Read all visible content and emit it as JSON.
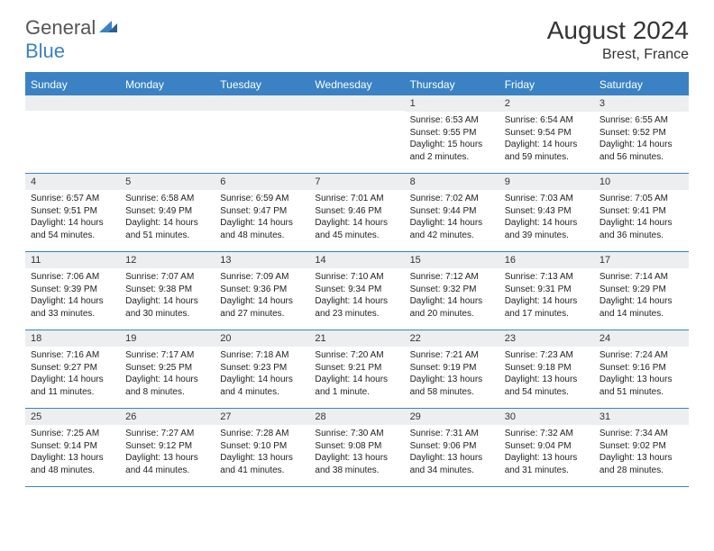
{
  "logo": {
    "part1": "General",
    "part2": "Blue"
  },
  "title": "August 2024",
  "location": "Brest, France",
  "accent_color": "#3b82c4",
  "header_bg": "#eceef0",
  "day_names": [
    "Sunday",
    "Monday",
    "Tuesday",
    "Wednesday",
    "Thursday",
    "Friday",
    "Saturday"
  ],
  "weeks": [
    [
      {
        "n": "",
        "sr": "",
        "ss": "",
        "dl": ""
      },
      {
        "n": "",
        "sr": "",
        "ss": "",
        "dl": ""
      },
      {
        "n": "",
        "sr": "",
        "ss": "",
        "dl": ""
      },
      {
        "n": "",
        "sr": "",
        "ss": "",
        "dl": ""
      },
      {
        "n": "1",
        "sr": "Sunrise: 6:53 AM",
        "ss": "Sunset: 9:55 PM",
        "dl": "Daylight: 15 hours and 2 minutes."
      },
      {
        "n": "2",
        "sr": "Sunrise: 6:54 AM",
        "ss": "Sunset: 9:54 PM",
        "dl": "Daylight: 14 hours and 59 minutes."
      },
      {
        "n": "3",
        "sr": "Sunrise: 6:55 AM",
        "ss": "Sunset: 9:52 PM",
        "dl": "Daylight: 14 hours and 56 minutes."
      }
    ],
    [
      {
        "n": "4",
        "sr": "Sunrise: 6:57 AM",
        "ss": "Sunset: 9:51 PM",
        "dl": "Daylight: 14 hours and 54 minutes."
      },
      {
        "n": "5",
        "sr": "Sunrise: 6:58 AM",
        "ss": "Sunset: 9:49 PM",
        "dl": "Daylight: 14 hours and 51 minutes."
      },
      {
        "n": "6",
        "sr": "Sunrise: 6:59 AM",
        "ss": "Sunset: 9:47 PM",
        "dl": "Daylight: 14 hours and 48 minutes."
      },
      {
        "n": "7",
        "sr": "Sunrise: 7:01 AM",
        "ss": "Sunset: 9:46 PM",
        "dl": "Daylight: 14 hours and 45 minutes."
      },
      {
        "n": "8",
        "sr": "Sunrise: 7:02 AM",
        "ss": "Sunset: 9:44 PM",
        "dl": "Daylight: 14 hours and 42 minutes."
      },
      {
        "n": "9",
        "sr": "Sunrise: 7:03 AM",
        "ss": "Sunset: 9:43 PM",
        "dl": "Daylight: 14 hours and 39 minutes."
      },
      {
        "n": "10",
        "sr": "Sunrise: 7:05 AM",
        "ss": "Sunset: 9:41 PM",
        "dl": "Daylight: 14 hours and 36 minutes."
      }
    ],
    [
      {
        "n": "11",
        "sr": "Sunrise: 7:06 AM",
        "ss": "Sunset: 9:39 PM",
        "dl": "Daylight: 14 hours and 33 minutes."
      },
      {
        "n": "12",
        "sr": "Sunrise: 7:07 AM",
        "ss": "Sunset: 9:38 PM",
        "dl": "Daylight: 14 hours and 30 minutes."
      },
      {
        "n": "13",
        "sr": "Sunrise: 7:09 AM",
        "ss": "Sunset: 9:36 PM",
        "dl": "Daylight: 14 hours and 27 minutes."
      },
      {
        "n": "14",
        "sr": "Sunrise: 7:10 AM",
        "ss": "Sunset: 9:34 PM",
        "dl": "Daylight: 14 hours and 23 minutes."
      },
      {
        "n": "15",
        "sr": "Sunrise: 7:12 AM",
        "ss": "Sunset: 9:32 PM",
        "dl": "Daylight: 14 hours and 20 minutes."
      },
      {
        "n": "16",
        "sr": "Sunrise: 7:13 AM",
        "ss": "Sunset: 9:31 PM",
        "dl": "Daylight: 14 hours and 17 minutes."
      },
      {
        "n": "17",
        "sr": "Sunrise: 7:14 AM",
        "ss": "Sunset: 9:29 PM",
        "dl": "Daylight: 14 hours and 14 minutes."
      }
    ],
    [
      {
        "n": "18",
        "sr": "Sunrise: 7:16 AM",
        "ss": "Sunset: 9:27 PM",
        "dl": "Daylight: 14 hours and 11 minutes."
      },
      {
        "n": "19",
        "sr": "Sunrise: 7:17 AM",
        "ss": "Sunset: 9:25 PM",
        "dl": "Daylight: 14 hours and 8 minutes."
      },
      {
        "n": "20",
        "sr": "Sunrise: 7:18 AM",
        "ss": "Sunset: 9:23 PM",
        "dl": "Daylight: 14 hours and 4 minutes."
      },
      {
        "n": "21",
        "sr": "Sunrise: 7:20 AM",
        "ss": "Sunset: 9:21 PM",
        "dl": "Daylight: 14 hours and 1 minute."
      },
      {
        "n": "22",
        "sr": "Sunrise: 7:21 AM",
        "ss": "Sunset: 9:19 PM",
        "dl": "Daylight: 13 hours and 58 minutes."
      },
      {
        "n": "23",
        "sr": "Sunrise: 7:23 AM",
        "ss": "Sunset: 9:18 PM",
        "dl": "Daylight: 13 hours and 54 minutes."
      },
      {
        "n": "24",
        "sr": "Sunrise: 7:24 AM",
        "ss": "Sunset: 9:16 PM",
        "dl": "Daylight: 13 hours and 51 minutes."
      }
    ],
    [
      {
        "n": "25",
        "sr": "Sunrise: 7:25 AM",
        "ss": "Sunset: 9:14 PM",
        "dl": "Daylight: 13 hours and 48 minutes."
      },
      {
        "n": "26",
        "sr": "Sunrise: 7:27 AM",
        "ss": "Sunset: 9:12 PM",
        "dl": "Daylight: 13 hours and 44 minutes."
      },
      {
        "n": "27",
        "sr": "Sunrise: 7:28 AM",
        "ss": "Sunset: 9:10 PM",
        "dl": "Daylight: 13 hours and 41 minutes."
      },
      {
        "n": "28",
        "sr": "Sunrise: 7:30 AM",
        "ss": "Sunset: 9:08 PM",
        "dl": "Daylight: 13 hours and 38 minutes."
      },
      {
        "n": "29",
        "sr": "Sunrise: 7:31 AM",
        "ss": "Sunset: 9:06 PM",
        "dl": "Daylight: 13 hours and 34 minutes."
      },
      {
        "n": "30",
        "sr": "Sunrise: 7:32 AM",
        "ss": "Sunset: 9:04 PM",
        "dl": "Daylight: 13 hours and 31 minutes."
      },
      {
        "n": "31",
        "sr": "Sunrise: 7:34 AM",
        "ss": "Sunset: 9:02 PM",
        "dl": "Daylight: 13 hours and 28 minutes."
      }
    ]
  ]
}
